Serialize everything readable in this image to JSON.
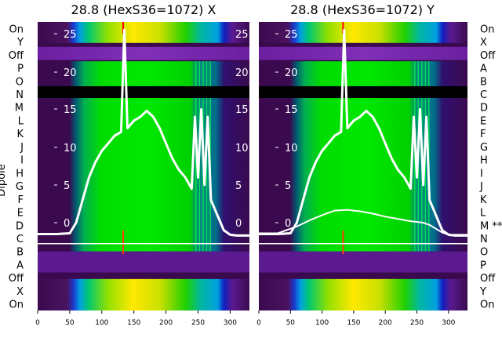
{
  "chart_data": [
    {
      "type": "heatmap",
      "title": "28.8 (HexS36=1072) X",
      "xlabel": "",
      "ylabel": "Dipole",
      "xlim": [
        0,
        330
      ],
      "x_ticks": [
        0,
        50,
        100,
        150,
        200,
        250,
        300
      ],
      "row_labels": [
        "On",
        "Y",
        "Off",
        "P",
        "O",
        "N",
        "M",
        "L",
        "K",
        "J",
        "I",
        "H",
        "G",
        "F",
        "E",
        "D",
        "C",
        "B",
        "A",
        "Off",
        "X",
        "On"
      ],
      "inset_ticks": [
        "25",
        "20",
        "15",
        "10",
        "5",
        "0"
      ],
      "inset_ylim": [
        -2,
        26
      ],
      "colormap": [
        "#3b0a4e",
        "#6b1fa0",
        "#1020c0",
        "#00a0e0",
        "#00e000",
        "#c8e000",
        "#ffe000",
        "#ff0000"
      ],
      "series": [
        {
          "color": "#ffffff",
          "x": [
            0,
            30,
            50,
            60,
            70,
            80,
            90,
            100,
            110,
            120,
            130,
            135,
            140,
            150,
            160,
            170,
            180,
            190,
            200,
            210,
            220,
            230,
            240,
            245,
            250,
            255,
            260,
            265,
            270,
            275,
            280,
            285,
            290,
            300,
            310,
            320,
            330
          ],
          "y": [
            -1.5,
            -1.5,
            -1.4,
            0,
            3,
            6,
            8,
            9.5,
            10.5,
            11.5,
            12,
            25.5,
            12.5,
            13.5,
            14,
            14.8,
            14,
            12.5,
            10.5,
            8.5,
            7,
            6,
            4.5,
            14,
            6,
            15,
            5,
            14,
            3,
            2,
            1,
            0,
            -1,
            -1.6,
            -1.7,
            -1.7,
            -1.7
          ]
        }
      ]
    },
    {
      "type": "heatmap",
      "title": "28.8 (HexS36=1072) Y",
      "xlabel": "",
      "ylabel": "",
      "xlim": [
        0,
        330
      ],
      "x_ticks": [
        0,
        50,
        100,
        150,
        200,
        250,
        300
      ],
      "row_labels": [
        "On",
        "X",
        "Off",
        "A",
        "B",
        "C",
        "D",
        "E",
        "F",
        "G",
        "H",
        "I",
        "J",
        "K",
        "L",
        "M **",
        "N",
        "O",
        "P",
        "Off",
        "Y",
        "On"
      ],
      "inset_ticks": [
        "25",
        "20",
        "15",
        "10",
        "5",
        "0"
      ],
      "inset_ylim": [
        -2,
        26
      ],
      "colormap": [
        "#3b0a4e",
        "#6b1fa0",
        "#1020c0",
        "#00a0e0",
        "#00e000",
        "#c8e000",
        "#ffe000",
        "#ff0000"
      ],
      "series": [
        {
          "color": "#ffffff",
          "x": [
            0,
            30,
            50,
            60,
            70,
            80,
            90,
            100,
            110,
            120,
            130,
            135,
            140,
            150,
            160,
            170,
            180,
            190,
            200,
            210,
            220,
            230,
            240,
            245,
            250,
            255,
            260,
            265,
            270,
            275,
            280,
            285,
            290,
            300,
            310,
            320,
            330
          ],
          "y": [
            -1.5,
            -1.5,
            -1.4,
            0,
            3,
            6,
            8,
            9.5,
            10.5,
            11.5,
            12,
            25.5,
            12.5,
            13.5,
            14,
            14.8,
            14,
            12.5,
            10.5,
            8.5,
            7,
            6,
            4.5,
            14,
            6,
            15,
            5,
            14,
            3,
            2,
            1,
            0,
            -1,
            -1.6,
            -1.7,
            -1.7,
            -1.7
          ]
        },
        {
          "color": "#ffffff",
          "x": [
            0,
            30,
            60,
            80,
            100,
            120,
            140,
            160,
            180,
            200,
            220,
            240,
            260,
            270,
            280,
            290,
            300,
            330
          ],
          "y": [
            -1.4,
            -1.4,
            -0.5,
            0.3,
            1,
            1.6,
            1.7,
            1.5,
            1.2,
            0.8,
            0.5,
            0.2,
            0,
            -0.3,
            -0.8,
            -1.3,
            -1.6,
            -1.6
          ]
        }
      ]
    }
  ]
}
